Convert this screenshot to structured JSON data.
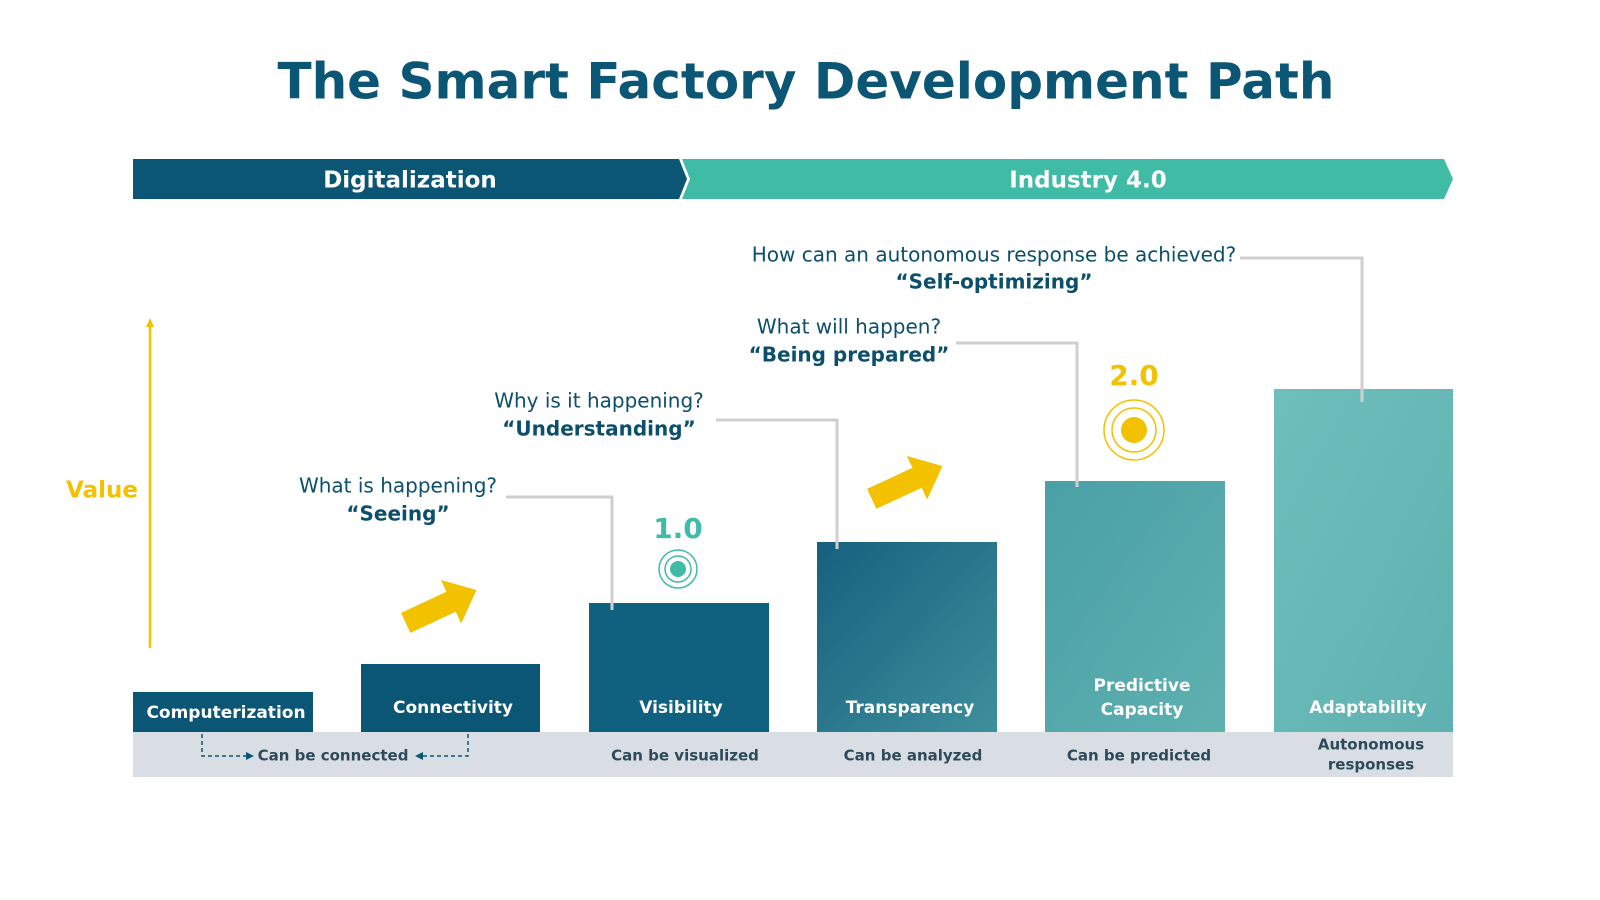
{
  "title": "The Smart Factory Development Path",
  "phases": [
    "Digitalization",
    "Industry 4.0"
  ],
  "axis_label": "Value",
  "stages": [
    {
      "label_lines": [
        "Computerization"
      ]
    },
    {
      "label_lines": [
        "Connectivity"
      ]
    },
    {
      "label_lines": [
        "Visibility"
      ]
    },
    {
      "label_lines": [
        "Transparency"
      ]
    },
    {
      "label_lines": [
        "Predictive",
        "Capacity"
      ]
    },
    {
      "label_lines": [
        "Adaptability"
      ]
    }
  ],
  "captions": [
    {
      "lines": [
        "Can be connected"
      ]
    },
    {
      "lines": [
        "Can be visualized"
      ]
    },
    {
      "lines": [
        "Can be analyzed"
      ]
    },
    {
      "lines": [
        "Can be predicted"
      ]
    },
    {
      "lines": [
        "Autonomous",
        "responses"
      ]
    }
  ],
  "questions": [
    {
      "question": "What is happening?",
      "answer": "“Seeing”"
    },
    {
      "question": "Why is it happening?",
      "answer": "“Understanding”"
    },
    {
      "question": "What will happen?",
      "answer": "“Being prepared”"
    },
    {
      "question": "How can an autonomous response be achieved?",
      "answer": "“Self-optimizing”"
    }
  ],
  "milestones": [
    "1.0",
    "2.0"
  ]
}
